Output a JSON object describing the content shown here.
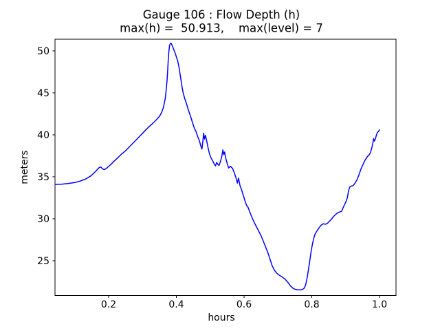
{
  "window": {
    "background": "#ffffff",
    "frame_color": "#000000",
    "text_color": "#000000"
  },
  "chart_data": {
    "type": "line",
    "title": "Gauge 106 : Flow Depth (h)",
    "subtitle": "max(h) =  50.913,    max(level) = 7",
    "xlabel": "hours",
    "ylabel": "meters",
    "xlim": [
      0.0416,
      1.0487
    ],
    "ylim": [
      20.86,
      51.39
    ],
    "xticks": [
      0.2,
      0.4,
      0.6,
      0.8,
      1.0
    ],
    "xtick_labels": [
      "0.2",
      "0.4",
      "0.6",
      "0.8",
      "1.0"
    ],
    "yticks": [
      25,
      30,
      35,
      40,
      45,
      50
    ],
    "ytick_labels": [
      "25",
      "30",
      "35",
      "40",
      "45",
      "50"
    ],
    "grid": false,
    "legend": null,
    "annotations": {
      "max_h": 50.913,
      "max_level": 7
    },
    "series": [
      {
        "name": "flow-depth-h",
        "color": "#0000ff",
        "line_width": 1.5,
        "points": [
          [
            0.042,
            34.1
          ],
          [
            0.06,
            34.12
          ],
          [
            0.08,
            34.2
          ],
          [
            0.1,
            34.32
          ],
          [
            0.117,
            34.5
          ],
          [
            0.133,
            34.75
          ],
          [
            0.147,
            35.1
          ],
          [
            0.158,
            35.5
          ],
          [
            0.166,
            35.85
          ],
          [
            0.172,
            36.1
          ],
          [
            0.177,
            36.17
          ],
          [
            0.182,
            35.95
          ],
          [
            0.187,
            35.85
          ],
          [
            0.193,
            36.0
          ],
          [
            0.199,
            36.2
          ],
          [
            0.207,
            36.5
          ],
          [
            0.217,
            36.9
          ],
          [
            0.228,
            37.3
          ],
          [
            0.238,
            37.7
          ],
          [
            0.25,
            38.1
          ],
          [
            0.262,
            38.6
          ],
          [
            0.274,
            39.1
          ],
          [
            0.286,
            39.6
          ],
          [
            0.298,
            40.1
          ],
          [
            0.31,
            40.6
          ],
          [
            0.32,
            41.0
          ],
          [
            0.33,
            41.35
          ],
          [
            0.34,
            41.75
          ],
          [
            0.35,
            42.2
          ],
          [
            0.357,
            42.7
          ],
          [
            0.362,
            43.3
          ],
          [
            0.367,
            44.3
          ],
          [
            0.37,
            45.3
          ],
          [
            0.3725,
            46.5
          ],
          [
            0.3745,
            47.8
          ],
          [
            0.376,
            48.9
          ],
          [
            0.378,
            50.0
          ],
          [
            0.38,
            50.65
          ],
          [
            0.3825,
            50.91
          ],
          [
            0.3855,
            50.85
          ],
          [
            0.388,
            50.6
          ],
          [
            0.392,
            50.2
          ],
          [
            0.396,
            49.8
          ],
          [
            0.4,
            49.3
          ],
          [
            0.404,
            48.8
          ],
          [
            0.408,
            48.0
          ],
          [
            0.412,
            47.0
          ],
          [
            0.416,
            45.9
          ],
          [
            0.42,
            45.0
          ],
          [
            0.425,
            44.3
          ],
          [
            0.43,
            43.7
          ],
          [
            0.436,
            42.9
          ],
          [
            0.442,
            42.2
          ],
          [
            0.448,
            41.4
          ],
          [
            0.453,
            40.8
          ],
          [
            0.458,
            40.4
          ],
          [
            0.463,
            39.8
          ],
          [
            0.468,
            39.3
          ],
          [
            0.472,
            38.7
          ],
          [
            0.4755,
            38.3
          ],
          [
            0.478,
            39.1
          ],
          [
            0.4805,
            40.2
          ],
          [
            0.483,
            39.5
          ],
          [
            0.486,
            39.95
          ],
          [
            0.49,
            39.2
          ],
          [
            0.494,
            38.4
          ],
          [
            0.498,
            37.7
          ],
          [
            0.503,
            37.2
          ],
          [
            0.508,
            36.85
          ],
          [
            0.512,
            36.5
          ],
          [
            0.5155,
            36.3
          ],
          [
            0.519,
            36.7
          ],
          [
            0.5225,
            36.5
          ],
          [
            0.526,
            36.35
          ],
          [
            0.53,
            36.8
          ],
          [
            0.534,
            37.4
          ],
          [
            0.5375,
            38.2
          ],
          [
            0.54,
            37.65
          ],
          [
            0.5425,
            37.95
          ],
          [
            0.546,
            37.2
          ],
          [
            0.55,
            36.6
          ],
          [
            0.5545,
            36.05
          ],
          [
            0.56,
            36.25
          ],
          [
            0.566,
            36.0
          ],
          [
            0.571,
            35.5
          ],
          [
            0.576,
            34.9
          ],
          [
            0.58,
            34.25
          ],
          [
            0.5835,
            34.85
          ],
          [
            0.588,
            33.95
          ],
          [
            0.593,
            33.4
          ],
          [
            0.598,
            32.75
          ],
          [
            0.603,
            32.1
          ],
          [
            0.6075,
            31.6
          ],
          [
            0.612,
            31.35
          ],
          [
            0.617,
            30.8
          ],
          [
            0.623,
            30.2
          ],
          [
            0.629,
            29.65
          ],
          [
            0.636,
            29.1
          ],
          [
            0.643,
            28.55
          ],
          [
            0.65,
            28.0
          ],
          [
            0.657,
            27.3
          ],
          [
            0.663,
            26.7
          ],
          [
            0.67,
            26.0
          ],
          [
            0.6765,
            25.2
          ],
          [
            0.683,
            24.4
          ],
          [
            0.69,
            23.85
          ],
          [
            0.697,
            23.5
          ],
          [
            0.705,
            23.25
          ],
          [
            0.713,
            23.05
          ],
          [
            0.721,
            22.8
          ],
          [
            0.729,
            22.45
          ],
          [
            0.737,
            22.0
          ],
          [
            0.7435,
            21.75
          ],
          [
            0.749,
            21.62
          ],
          [
            0.757,
            21.55
          ],
          [
            0.765,
            21.52
          ],
          [
            0.7725,
            21.58
          ],
          [
            0.778,
            21.75
          ],
          [
            0.782,
            22.15
          ],
          [
            0.786,
            22.9
          ],
          [
            0.79,
            23.9
          ],
          [
            0.794,
            25.0
          ],
          [
            0.798,
            26.1
          ],
          [
            0.802,
            27.0
          ],
          [
            0.806,
            27.7
          ],
          [
            0.81,
            28.2
          ],
          [
            0.816,
            28.6
          ],
          [
            0.822,
            28.95
          ],
          [
            0.828,
            29.25
          ],
          [
            0.834,
            29.4
          ],
          [
            0.84,
            29.35
          ],
          [
            0.846,
            29.45
          ],
          [
            0.852,
            29.7
          ],
          [
            0.858,
            29.95
          ],
          [
            0.864,
            30.25
          ],
          [
            0.87,
            30.5
          ],
          [
            0.876,
            30.7
          ],
          [
            0.882,
            30.8
          ],
          [
            0.888,
            30.9
          ],
          [
            0.894,
            31.45
          ],
          [
            0.9,
            31.95
          ],
          [
            0.905,
            32.5
          ],
          [
            0.909,
            33.4
          ],
          [
            0.9125,
            33.8
          ],
          [
            0.917,
            33.9
          ],
          [
            0.922,
            33.95
          ],
          [
            0.927,
            34.2
          ],
          [
            0.933,
            34.6
          ],
          [
            0.939,
            35.2
          ],
          [
            0.945,
            35.9
          ],
          [
            0.951,
            36.45
          ],
          [
            0.957,
            36.95
          ],
          [
            0.963,
            37.35
          ],
          [
            0.969,
            37.6
          ],
          [
            0.973,
            37.85
          ],
          [
            0.977,
            38.4
          ],
          [
            0.98,
            38.95
          ],
          [
            0.9825,
            39.55
          ],
          [
            0.985,
            39.25
          ],
          [
            0.988,
            39.55
          ],
          [
            0.991,
            40.0
          ],
          [
            0.994,
            40.3
          ],
          [
            0.997,
            40.4
          ],
          [
            1.0,
            40.6
          ]
        ]
      }
    ]
  }
}
